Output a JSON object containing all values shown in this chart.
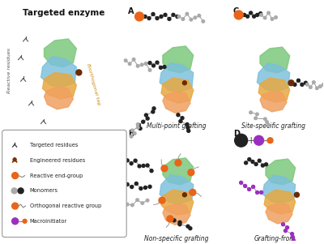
{
  "title": "Targeted enzyme",
  "bg_color": "#ffffff",
  "panel_labels": [
    "A",
    "B",
    "C",
    "D"
  ],
  "subtitle_A": "Multi-point grafting",
  "subtitle_B": "Non-specific grafting",
  "subtitle_C": "Site-specific grafting",
  "subtitle_D": "Grafting-from",
  "left_label": "Reactive residues",
  "right_label": "Biorthogonal tag",
  "col_green": "#7DC87D",
  "col_blue": "#7ABFDC",
  "col_orange": "#E8A840",
  "col_salmon": "#F0A060",
  "col_dark": "#222222",
  "col_gray": "#aaaaaa",
  "col_orange_end": "#E8651A",
  "col_purple": "#9B30C0",
  "col_brown": "#6B2A00",
  "legend_labels": [
    "Targeted residues",
    "Engineered residues",
    "Reactive end-group",
    "Monomers",
    "Orthogonal reactive group",
    "Macroinitiator"
  ]
}
